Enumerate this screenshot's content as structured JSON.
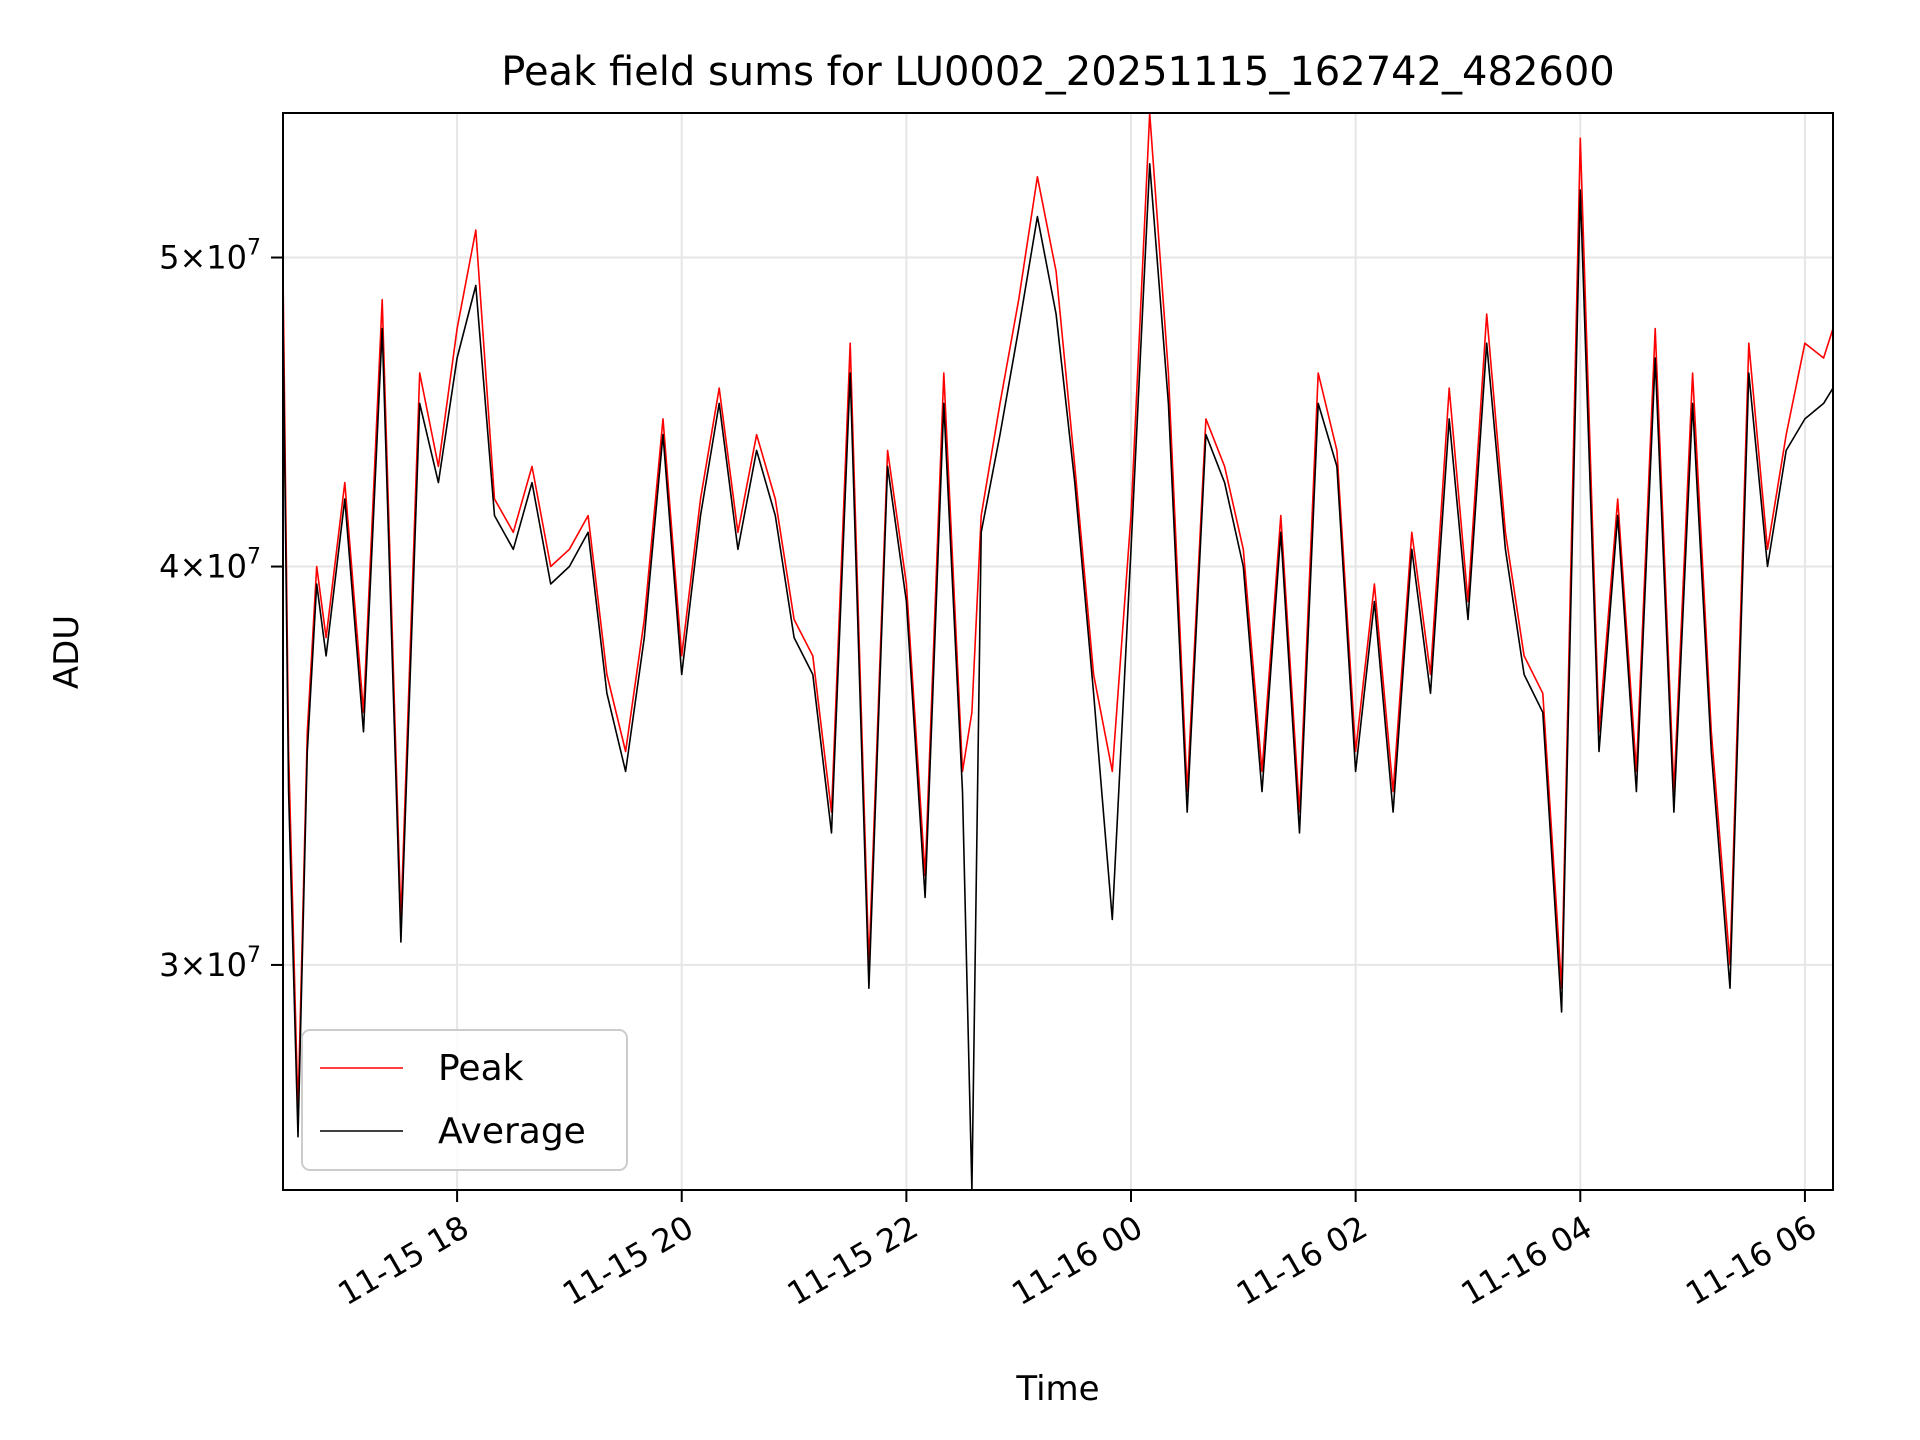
{
  "chart_data": {
    "type": "line",
    "title": "Peak field sums for LU0002_20251115_162742_482600",
    "xlabel": "Time",
    "ylabel": "ADU",
    "y_scale": "log",
    "ylim": [
      25500000,
      55500000
    ],
    "xlim": [
      "2025-11-15 16:27",
      "2025-11-16 06:15"
    ],
    "grid": true,
    "legend_position": "lower left",
    "x_ticks": [
      {
        "value": "2025-11-15 18:00",
        "label": "11-15 18"
      },
      {
        "value": "2025-11-15 20:00",
        "label": "11-15 20"
      },
      {
        "value": "2025-11-15 22:00",
        "label": "11-15 22"
      },
      {
        "value": "2025-11-16 00:00",
        "label": "11-16 00"
      },
      {
        "value": "2025-11-16 02:00",
        "label": "11-16 02"
      },
      {
        "value": "2025-11-16 04:00",
        "label": "11-16 04"
      },
      {
        "value": "2025-11-16 06:00",
        "label": "11-16 06"
      }
    ],
    "y_ticks": [
      {
        "value": 30000000,
        "mantissa": "3",
        "exponent": "7"
      },
      {
        "value": 40000000,
        "mantissa": "4",
        "exponent": "7"
      },
      {
        "value": 50000000,
        "mantissa": "5",
        "exponent": "7"
      }
    ],
    "x": [
      "2025-11-15 16:27",
      "2025-11-15 16:30",
      "2025-11-15 16:35",
      "2025-11-15 16:40",
      "2025-11-15 16:45",
      "2025-11-15 16:50",
      "2025-11-15 17:00",
      "2025-11-15 17:10",
      "2025-11-15 17:20",
      "2025-11-15 17:30",
      "2025-11-15 17:40",
      "2025-11-15 17:50",
      "2025-11-15 18:00",
      "2025-11-15 18:10",
      "2025-11-15 18:20",
      "2025-11-15 18:30",
      "2025-11-15 18:40",
      "2025-11-15 18:50",
      "2025-11-15 19:00",
      "2025-11-15 19:10",
      "2025-11-15 19:20",
      "2025-11-15 19:30",
      "2025-11-15 19:40",
      "2025-11-15 19:50",
      "2025-11-15 20:00",
      "2025-11-15 20:10",
      "2025-11-15 20:20",
      "2025-11-15 20:30",
      "2025-11-15 20:40",
      "2025-11-15 20:50",
      "2025-11-15 21:00",
      "2025-11-15 21:10",
      "2025-11-15 21:20",
      "2025-11-15 21:30",
      "2025-11-15 21:40",
      "2025-11-15 21:50",
      "2025-11-15 22:00",
      "2025-11-15 22:10",
      "2025-11-15 22:20",
      "2025-11-15 22:30",
      "2025-11-15 22:35",
      "2025-11-15 22:40",
      "2025-11-15 22:50",
      "2025-11-15 23:00",
      "2025-11-15 23:10",
      "2025-11-15 23:20",
      "2025-11-15 23:30",
      "2025-11-15 23:40",
      "2025-11-15 23:50",
      "2025-11-16 00:00",
      "2025-11-16 00:10",
      "2025-11-16 00:20",
      "2025-11-16 00:30",
      "2025-11-16 00:40",
      "2025-11-16 00:50",
      "2025-11-16 01:00",
      "2025-11-16 01:10",
      "2025-11-16 01:20",
      "2025-11-16 01:30",
      "2025-11-16 01:40",
      "2025-11-16 01:50",
      "2025-11-16 02:00",
      "2025-11-16 02:10",
      "2025-11-16 02:20",
      "2025-11-16 02:30",
      "2025-11-16 02:40",
      "2025-11-16 02:50",
      "2025-11-16 03:00",
      "2025-11-16 03:10",
      "2025-11-16 03:20",
      "2025-11-16 03:30",
      "2025-11-16 03:40",
      "2025-11-16 03:50",
      "2025-11-16 04:00",
      "2025-11-16 04:10",
      "2025-11-16 04:20",
      "2025-11-16 04:30",
      "2025-11-16 04:40",
      "2025-11-16 04:50",
      "2025-11-16 05:00",
      "2025-11-16 05:10",
      "2025-11-16 05:20",
      "2025-11-16 05:30",
      "2025-11-16 05:40",
      "2025-11-16 05:50",
      "2025-11-16 06:00",
      "2025-11-16 06:10",
      "2025-11-16 06:15"
    ],
    "series": [
      {
        "name": "Peak",
        "color": "#ff0000",
        "values": [
          49500000,
          35000000,
          27000000,
          35500000,
          40000000,
          38000000,
          42500000,
          36000000,
          48500000,
          31000000,
          46000000,
          43000000,
          47500000,
          51000000,
          42000000,
          41000000,
          43000000,
          40000000,
          40500000,
          41500000,
          37000000,
          35000000,
          38500000,
          44500000,
          37500000,
          42000000,
          45500000,
          41000000,
          44000000,
          42000000,
          38500000,
          37500000,
          33500000,
          47000000,
          30000000,
          43500000,
          39500000,
          32000000,
          46000000,
          34500000,
          36000000,
          41500000,
          45000000,
          48500000,
          53000000,
          49500000,
          43000000,
          37000000,
          34500000,
          41500000,
          55500000,
          46000000,
          34000000,
          44500000,
          43000000,
          40500000,
          34500000,
          41500000,
          33500000,
          46000000,
          43500000,
          35000000,
          39500000,
          34000000,
          41000000,
          37000000,
          45500000,
          39000000,
          48000000,
          41000000,
          37500000,
          36500000,
          29500000,
          54500000,
          35500000,
          42000000,
          34500000,
          47500000,
          34000000,
          46000000,
          35500000,
          30000000,
          47000000,
          40500000,
          44000000,
          47000000,
          46500000,
          47500000
        ]
      },
      {
        "name": "Average",
        "color": "#000000",
        "values": [
          48000000,
          34000000,
          26500000,
          35000000,
          39500000,
          37500000,
          42000000,
          35500000,
          47500000,
          30500000,
          45000000,
          42500000,
          46500000,
          49000000,
          41500000,
          40500000,
          42500000,
          39500000,
          40000000,
          41000000,
          36500000,
          34500000,
          38000000,
          44000000,
          37000000,
          41500000,
          45000000,
          40500000,
          43500000,
          41500000,
          38000000,
          37000000,
          33000000,
          46000000,
          29500000,
          43000000,
          39000000,
          31500000,
          45000000,
          34000000,
          25500000,
          41000000,
          44000000,
          47500000,
          51500000,
          48000000,
          42500000,
          36500000,
          31000000,
          40500000,
          53500000,
          45000000,
          33500000,
          44000000,
          42500000,
          40000000,
          34000000,
          41000000,
          33000000,
          45000000,
          43000000,
          34500000,
          39000000,
          33500000,
          40500000,
          36500000,
          44500000,
          38500000,
          47000000,
          40500000,
          37000000,
          36000000,
          29000000,
          52500000,
          35000000,
          41500000,
          34000000,
          46500000,
          33500000,
          45000000,
          35000000,
          29500000,
          46000000,
          40000000,
          43500000,
          44500000,
          45000000,
          45500000
        ]
      }
    ]
  }
}
